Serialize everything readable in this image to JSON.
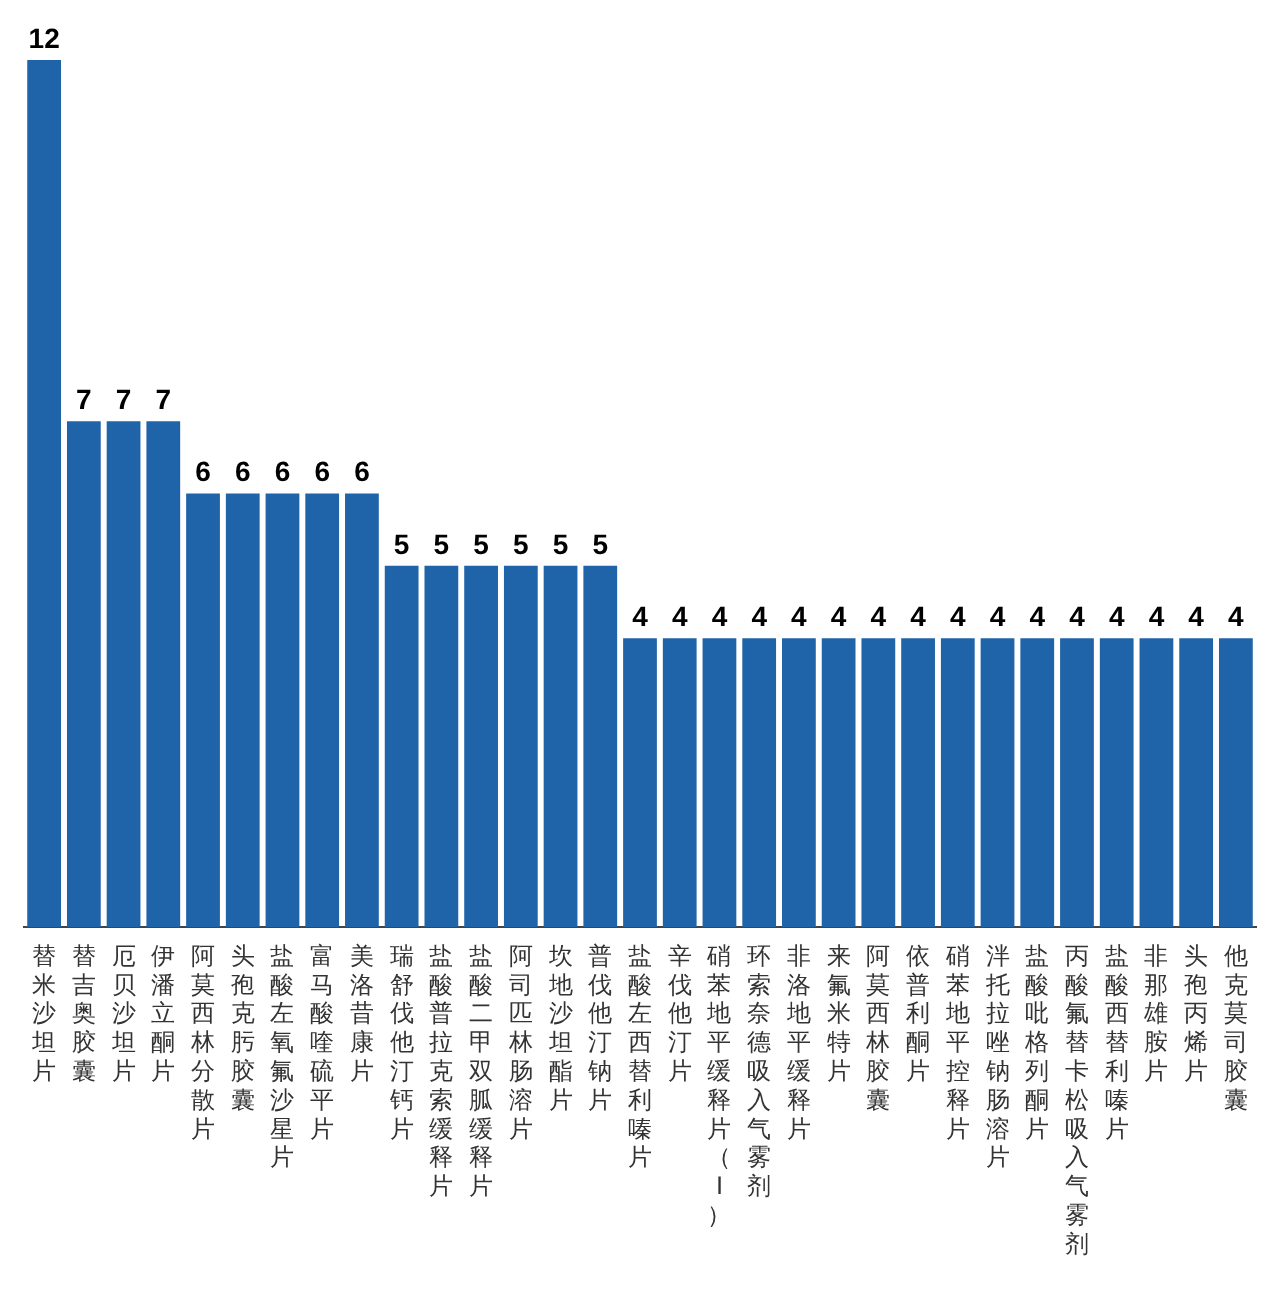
{
  "chart_data": {
    "type": "bar",
    "categories": [
      "替米沙坦片",
      "替吉奥胶囊",
      "厄贝沙坦片",
      "伊潘立酮片",
      "阿莫西林分散片",
      "头孢克肟胶囊",
      "盐酸左氧氟沙星片",
      "富马酸喹硫平片",
      "美洛昔康片",
      "瑞舒伐他汀钙片",
      "盐酸普拉克索缓释片",
      "盐酸二甲双胍缓释片",
      "阿司匹林肠溶片",
      "坎地沙坦酯片",
      "普伐他汀钠片",
      "盐酸左西替利嗪片",
      "辛伐他汀片",
      "硝苯地平缓释片（Ⅰ）",
      "环索奈德吸入气雾剂",
      "非洛地平缓释片",
      "来氟米特片",
      "阿莫西林胶囊",
      "依普利酮片",
      "硝苯地平控释片",
      "泮托拉唑钠肠溶片",
      "盐酸吡格列酮片",
      "丙酸氟替卡松吸入气雾剂",
      "盐酸西替利嗪片",
      "非那雄胺片",
      "头孢丙烯片",
      "他克莫司胶囊"
    ],
    "values": [
      12,
      7,
      7,
      7,
      6,
      6,
      6,
      6,
      6,
      5,
      5,
      5,
      5,
      5,
      5,
      4,
      4,
      4,
      4,
      4,
      4,
      4,
      4,
      4,
      4,
      4,
      4,
      4,
      4,
      4,
      4
    ],
    "color": "#1f64a8",
    "data_labels": true,
    "grid": false,
    "legend": false
  }
}
